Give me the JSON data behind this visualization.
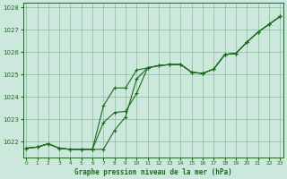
{
  "title": "Graphe pression niveau de la mer (hPa)",
  "xlabel_ticks": [
    "0",
    "1",
    "2",
    "3",
    "4",
    "5",
    "6",
    "7",
    "8",
    "9",
    "10",
    "11",
    "12",
    "13",
    "14",
    "15",
    "16",
    "17",
    "18",
    "19",
    "20",
    "21",
    "22",
    "23"
  ],
  "ylim": [
    1021.3,
    1028.2
  ],
  "yticks": [
    1022,
    1023,
    1024,
    1025,
    1026,
    1027,
    1028
  ],
  "background_color": "#cce8dc",
  "grid_color": "#88bb99",
  "line_color": "#1a6b1a",
  "line1": [
    1021.7,
    1021.75,
    1021.9,
    1021.7,
    1021.65,
    1021.65,
    1021.65,
    1021.65,
    1022.5,
    1023.1,
    1024.8,
    1025.3,
    1025.4,
    1025.45,
    1025.45,
    1025.1,
    1025.05,
    1025.25,
    1025.9,
    1025.95,
    1026.45,
    1026.9,
    1027.25,
    1027.6
  ],
  "line2": [
    1021.7,
    1021.75,
    1021.9,
    1021.7,
    1021.65,
    1021.65,
    1021.65,
    1023.6,
    1024.4,
    1024.4,
    1025.2,
    1025.3,
    1025.4,
    1025.45,
    1025.45,
    1025.1,
    1025.05,
    1025.25,
    1025.9,
    1025.95,
    1026.45,
    1026.9,
    1027.25,
    1027.6
  ],
  "line3": [
    1021.7,
    1021.75,
    1021.9,
    1021.7,
    1021.65,
    1021.65,
    1021.65,
    1022.85,
    1023.3,
    1023.35,
    1024.15,
    1025.3,
    1025.4,
    1025.45,
    1025.45,
    1025.1,
    1025.05,
    1025.25,
    1025.9,
    1025.95,
    1026.45,
    1026.9,
    1027.25,
    1027.6
  ]
}
